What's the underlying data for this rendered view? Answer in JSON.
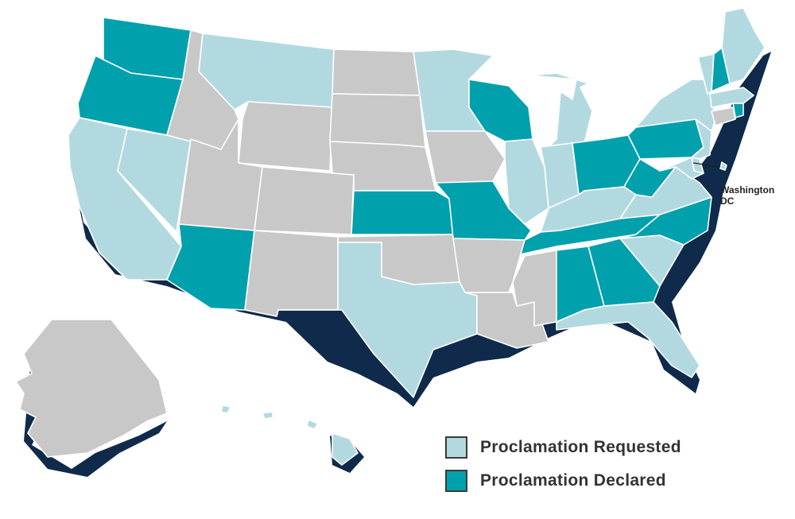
{
  "colors": {
    "requested": "#b3d9e0",
    "declared": "#00a0ad",
    "none": "#c8c8c8",
    "shadow": "#0f2a4a",
    "text": "#333333"
  },
  "legend": {
    "requested_label": "Proclamation Requested",
    "declared_label": "Proclamation Declared"
  },
  "dc_label": "Washington\nDC",
  "states": [
    {
      "name": "WA",
      "status": "declared"
    },
    {
      "name": "OR",
      "status": "declared"
    },
    {
      "name": "CA",
      "status": "requested"
    },
    {
      "name": "NV",
      "status": "requested"
    },
    {
      "name": "ID",
      "status": "none"
    },
    {
      "name": "MT",
      "status": "requested"
    },
    {
      "name": "WY",
      "status": "none"
    },
    {
      "name": "UT",
      "status": "none"
    },
    {
      "name": "AZ",
      "status": "declared"
    },
    {
      "name": "CO",
      "status": "none"
    },
    {
      "name": "NM",
      "status": "none"
    },
    {
      "name": "ND",
      "status": "none"
    },
    {
      "name": "SD",
      "status": "none"
    },
    {
      "name": "NE",
      "status": "none"
    },
    {
      "name": "KS",
      "status": "declared"
    },
    {
      "name": "OK",
      "status": "none"
    },
    {
      "name": "TX",
      "status": "requested"
    },
    {
      "name": "MN",
      "status": "requested"
    },
    {
      "name": "IA",
      "status": "none"
    },
    {
      "name": "MO",
      "status": "declared"
    },
    {
      "name": "AR",
      "status": "none"
    },
    {
      "name": "LA",
      "status": "none"
    },
    {
      "name": "WI",
      "status": "declared"
    },
    {
      "name": "IL",
      "status": "requested"
    },
    {
      "name": "MI",
      "status": "requested"
    },
    {
      "name": "IN",
      "status": "requested"
    },
    {
      "name": "OH",
      "status": "declared"
    },
    {
      "name": "KY",
      "status": "requested"
    },
    {
      "name": "TN",
      "status": "declared"
    },
    {
      "name": "MS",
      "status": "none"
    },
    {
      "name": "AL",
      "status": "declared"
    },
    {
      "name": "GA",
      "status": "declared"
    },
    {
      "name": "FL",
      "status": "requested"
    },
    {
      "name": "SC",
      "status": "requested"
    },
    {
      "name": "NC",
      "status": "declared"
    },
    {
      "name": "VA",
      "status": "requested"
    },
    {
      "name": "WV",
      "status": "declared"
    },
    {
      "name": "PA",
      "status": "declared"
    },
    {
      "name": "NY",
      "status": "requested"
    },
    {
      "name": "NJ",
      "status": "requested"
    },
    {
      "name": "DE",
      "status": "requested"
    },
    {
      "name": "MD",
      "status": "requested"
    },
    {
      "name": "DC",
      "status": "requested"
    },
    {
      "name": "CT",
      "status": "none"
    },
    {
      "name": "RI",
      "status": "declared"
    },
    {
      "name": "MA",
      "status": "requested"
    },
    {
      "name": "VT",
      "status": "requested"
    },
    {
      "name": "NH",
      "status": "declared"
    },
    {
      "name": "ME",
      "status": "requested"
    },
    {
      "name": "AK",
      "status": "none"
    },
    {
      "name": "HI",
      "status": "requested"
    }
  ]
}
